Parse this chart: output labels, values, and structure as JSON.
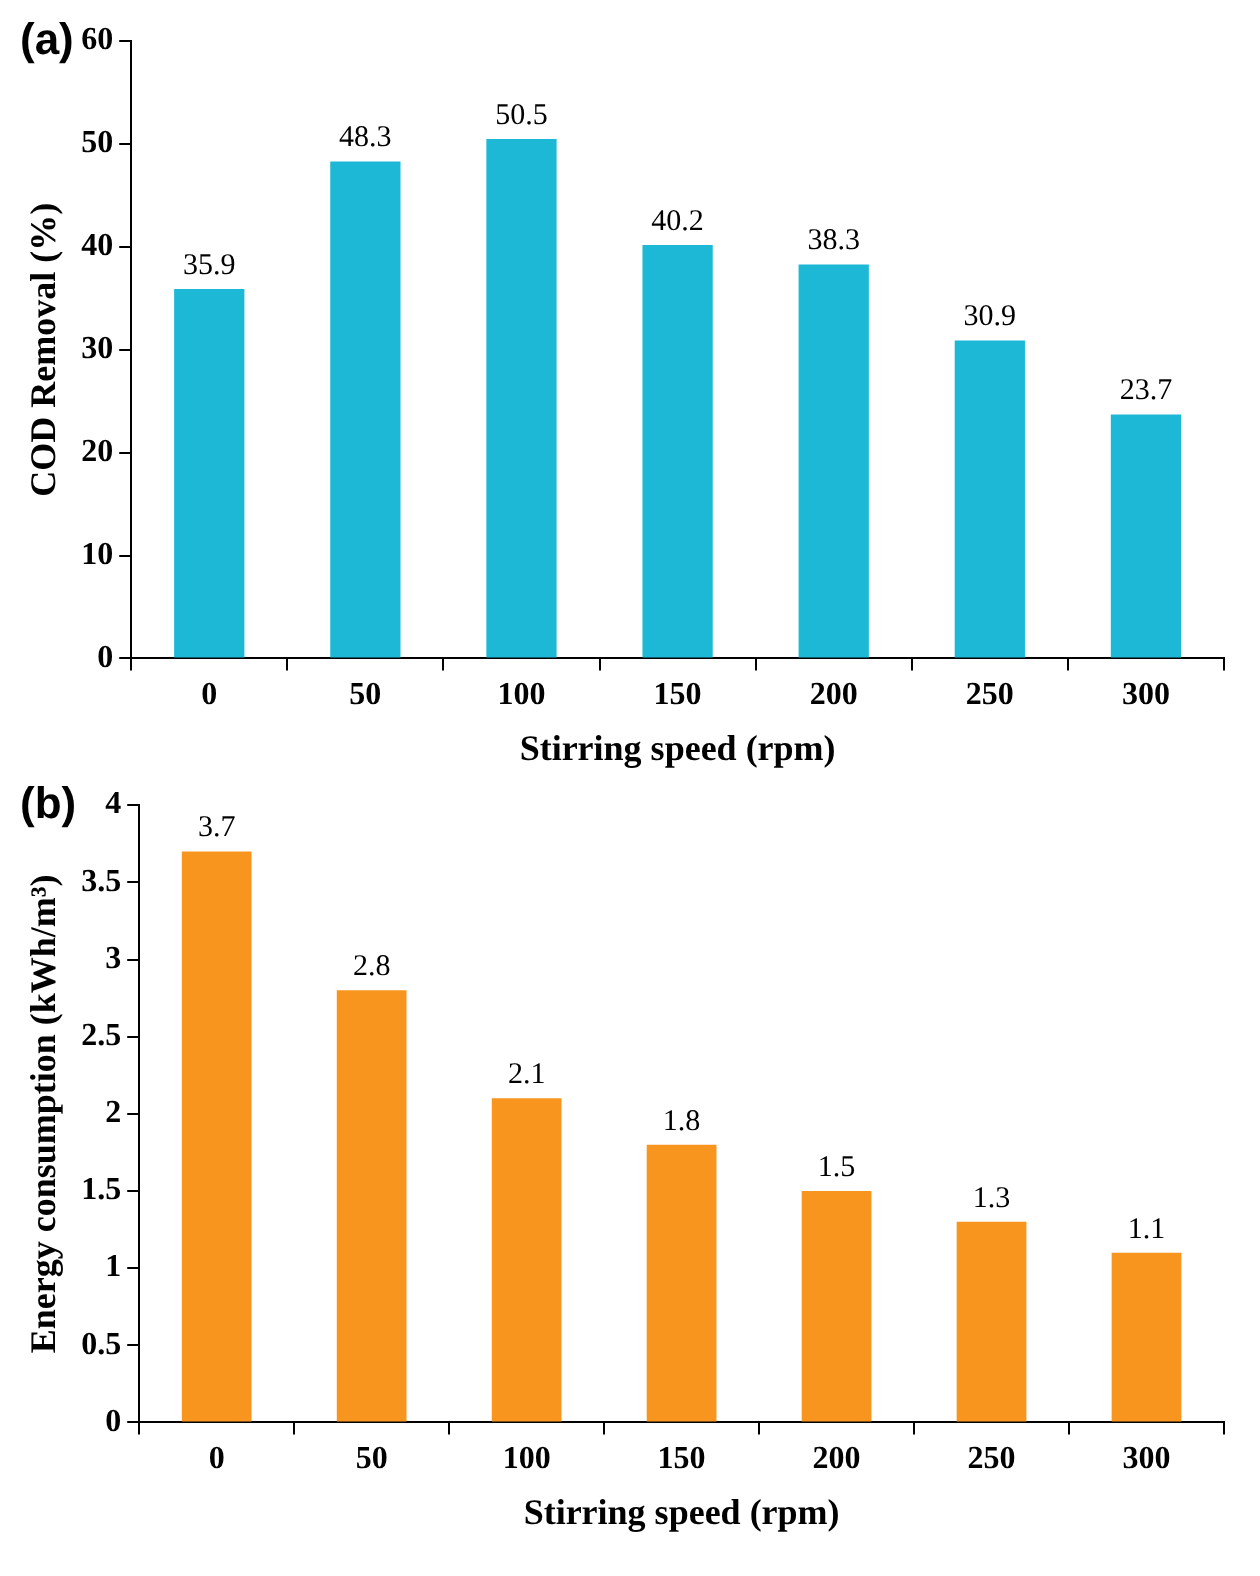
{
  "chart_data": [
    {
      "type": "bar",
      "xlabel": "Stirring speed (rpm)",
      "ylabel": "COD Removal (%)",
      "annotations": [
        "(a)"
      ],
      "categories": [
        "0",
        "50",
        "100",
        "150",
        "200",
        "250",
        "300"
      ],
      "values": [
        35.9,
        48.3,
        50.5,
        40.2,
        38.3,
        30.9,
        23.7
      ],
      "color": "#1cb8d6",
      "ylim": [
        0,
        60
      ],
      "yticks": [
        0,
        10,
        20,
        30,
        40,
        50,
        60
      ],
      "grid": false,
      "data_labels": true
    },
    {
      "type": "bar",
      "xlabel": "Stirring speed (rpm)",
      "ylabel": "Energy consumption (kWh/m³)",
      "annotations": [
        "(b)"
      ],
      "categories": [
        "0",
        "50",
        "100",
        "150",
        "200",
        "250",
        "300"
      ],
      "values": [
        3.7,
        2.8,
        2.1,
        1.8,
        1.5,
        1.3,
        1.1
      ],
      "color": "#f7951e",
      "ylim": [
        0,
        4
      ],
      "yticks": [
        0,
        0.5,
        1,
        1.5,
        2,
        2.5,
        3,
        3.5,
        4
      ],
      "grid": false,
      "data_labels": true
    }
  ]
}
